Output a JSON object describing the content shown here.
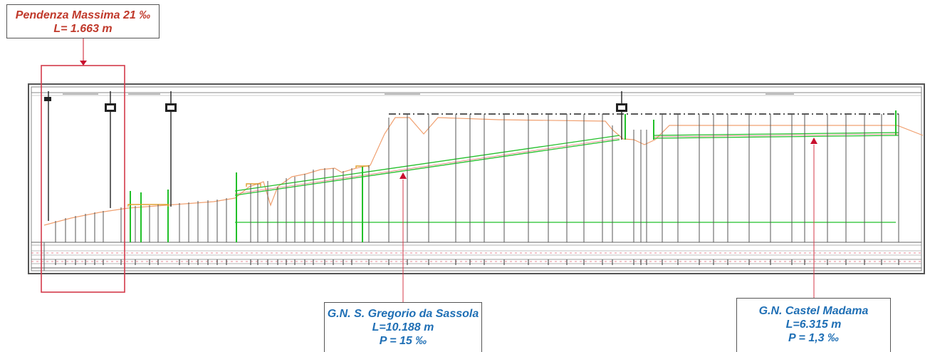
{
  "callouts": {
    "max_gradient": {
      "title": "Pendenza Massima 21 ‰",
      "length": "L= 1.663 m"
    },
    "gallery_sassola": {
      "name": "G.N. S. Gregorio da Sassola",
      "length": "L=10.188 m",
      "gradient": "P = 15 ‰"
    },
    "gallery_madama": {
      "name": "G.N. Castel Madama",
      "length": "L=6.315 m",
      "gradient": "P = 1,3 ‰"
    }
  },
  "colors": {
    "callout_red_text": "#c0392b",
    "callout_blue_text": "#1f6fb5",
    "highlight_frame": "#d43a4a",
    "marker": "#c8102e",
    "profile_green": "#22c02a",
    "terrain_orange": "#f0a070",
    "frame_grey": "#555555"
  }
}
